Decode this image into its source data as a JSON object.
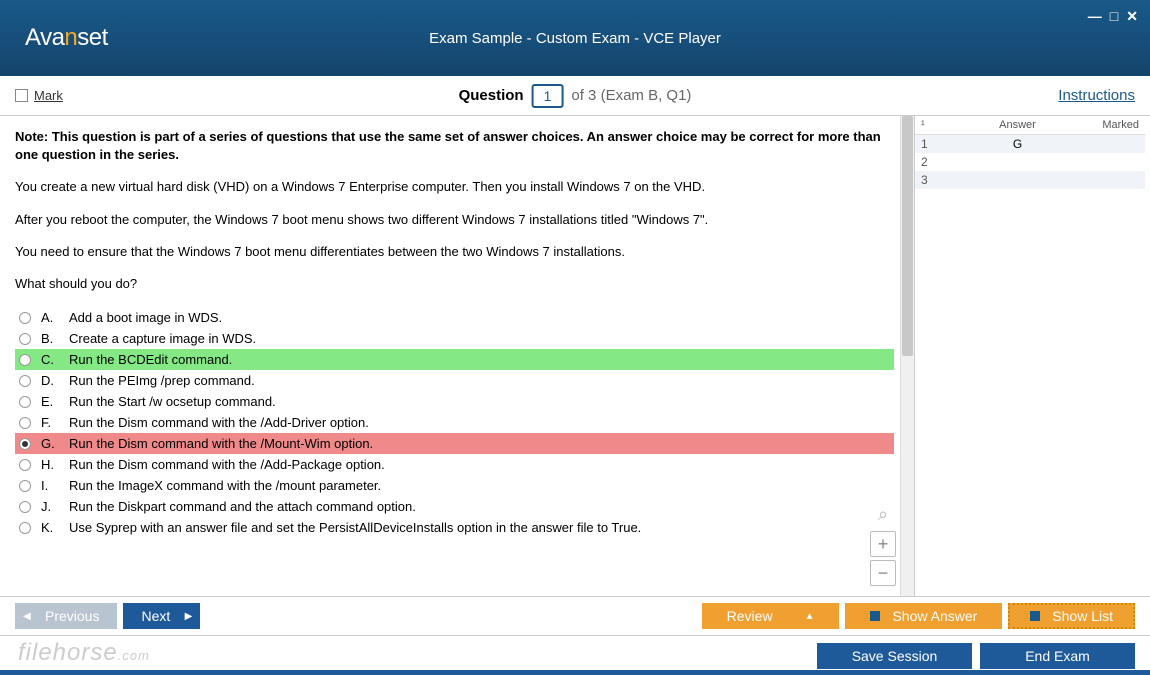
{
  "colors": {
    "titlebar_top": "#1a5a8a",
    "titlebar_bottom": "#14456c",
    "accent_orange": "#f5a623",
    "button_blue": "#1e5a9a",
    "button_orange": "#f0a030",
    "disabled_grey": "#b8c4d0",
    "correct_green": "#84e984",
    "wrong_red": "#f08a8a"
  },
  "header": {
    "logo_text": "Avanset",
    "title": "Exam Sample - Custom Exam - VCE Player"
  },
  "question_bar": {
    "mark_label": "Mark",
    "question_label": "Question",
    "question_number": "1",
    "question_of": "of 3 (Exam B, Q1)",
    "instructions_label": "Instructions"
  },
  "question": {
    "note": "Note: This question is part of a series of questions that use the same set of answer choices. An answer choice may be correct for more than one question in the series.",
    "para1": "You create a new virtual hard disk (VHD) on a Windows 7 Enterprise computer. Then you install Windows 7 on the VHD.",
    "para2": "After you reboot the computer, the Windows 7 boot menu shows two different Windows 7 installations titled \"Windows 7\".",
    "para3": "You need to ensure that the Windows 7 boot menu differentiates between the two Windows 7 installations.",
    "para4": "What should you do?",
    "answers": [
      {
        "letter": "A.",
        "text": "Add a boot image in WDS.",
        "state": "normal",
        "selected": false
      },
      {
        "letter": "B.",
        "text": "Create a capture image in WDS.",
        "state": "normal",
        "selected": false
      },
      {
        "letter": "C.",
        "text": "Run the BCDEdit command.",
        "state": "correct",
        "selected": false
      },
      {
        "letter": "D.",
        "text": "Run the PEImg /prep command.",
        "state": "normal",
        "selected": false
      },
      {
        "letter": "E.",
        "text": "Run the Start /w ocsetup command.",
        "state": "normal",
        "selected": false
      },
      {
        "letter": "F.",
        "text": "Run the Dism command with the /Add-Driver option.",
        "state": "normal",
        "selected": false
      },
      {
        "letter": "G.",
        "text": "Run the Dism command with the /Mount-Wim option.",
        "state": "wrong",
        "selected": true
      },
      {
        "letter": "H.",
        "text": "Run the Dism command with the /Add-Package option.",
        "state": "normal",
        "selected": false
      },
      {
        "letter": "I.",
        "text": "Run the ImageX command with the /mount parameter.",
        "state": "normal",
        "selected": false
      },
      {
        "letter": "J.",
        "text": "Run the Diskpart command and the attach command option.",
        "state": "normal",
        "selected": false
      },
      {
        "letter": "K.",
        "text": "Use Syprep with an answer file and set the PersistAllDeviceInstalls option in the answer file to True.",
        "state": "normal",
        "selected": false
      }
    ]
  },
  "answer_panel": {
    "col_num": "¹",
    "col_answer": "Answer",
    "col_marked": "Marked",
    "rows": [
      {
        "num": "1",
        "answer": "G",
        "marked": ""
      },
      {
        "num": "2",
        "answer": "",
        "marked": ""
      },
      {
        "num": "3",
        "answer": "",
        "marked": ""
      }
    ]
  },
  "nav": {
    "previous": "Previous",
    "next": "Next",
    "review": "Review",
    "show_answer": "Show Answer",
    "show_list": "Show List"
  },
  "bottom": {
    "save_session": "Save Session",
    "end_exam": "End Exam",
    "watermark": "filehorse",
    "watermark_suffix": ".com"
  },
  "window_controls": {
    "minimize": "—",
    "maximize": "□",
    "close": "✕"
  },
  "zoom": {
    "plus": "+",
    "minus": "−"
  }
}
